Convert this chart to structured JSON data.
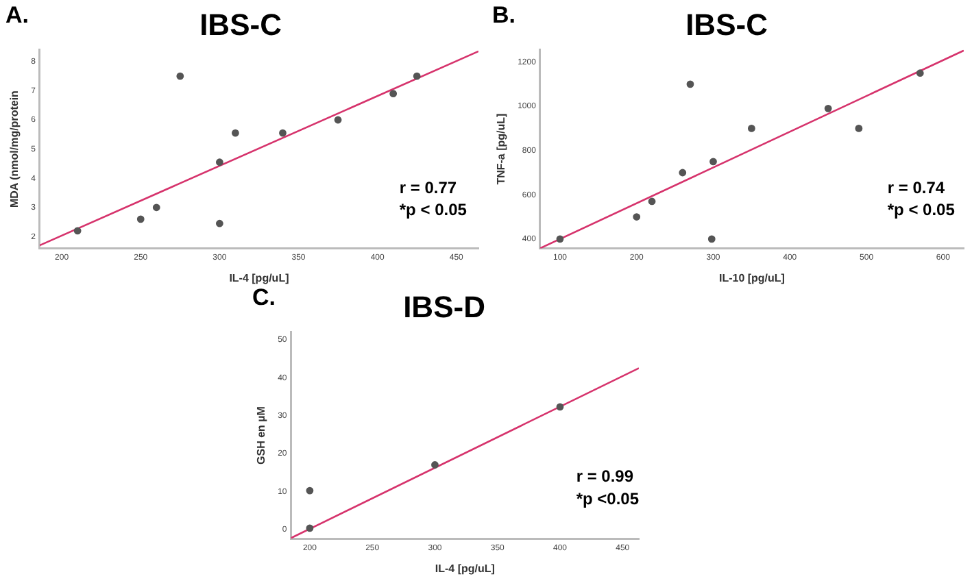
{
  "chart_data": [
    {
      "type": "scatter",
      "title": "IBS-C",
      "xlabel": "IL-4 [pg/uL]",
      "ylabel": "MDA (nmol/mg/protein",
      "annotations": [
        "A.",
        "r = 0.77",
        "*p < 0.05"
      ],
      "xlim": [
        186,
        464
      ],
      "xticks": [
        200,
        250,
        300,
        350,
        400,
        450
      ],
      "ylim": [
        1.6,
        8.4
      ],
      "yticks": [
        2,
        3,
        4,
        5,
        6,
        7,
        8
      ],
      "grid": false,
      "legend": false,
      "series": [
        {
          "type": "scatter",
          "marker": "circle",
          "color": "#555555",
          "x": [
            210,
            250,
            260,
            275,
            300,
            300,
            310,
            340,
            375,
            410,
            425
          ],
          "values": [
            2.2,
            2.6,
            3.0,
            7.5,
            2.45,
            4.55,
            5.55,
            5.55,
            6.0,
            6.9,
            7.5
          ]
        },
        {
          "type": "line",
          "color": "#d6336c",
          "x": [
            186,
            464
          ],
          "values": [
            1.7,
            8.35
          ]
        }
      ]
    },
    {
      "type": "scatter",
      "title": "IBS-C",
      "xlabel": "IL-10 [pg/uL]",
      "ylabel": "TNF-a [pg/uL]",
      "annotations": [
        "B.",
        "r = 0.74",
        "*p < 0.05"
      ],
      "xlim": [
        74,
        627
      ],
      "xticks": [
        100,
        200,
        300,
        400,
        500,
        600
      ],
      "ylim": [
        358,
        1255
      ],
      "yticks": [
        400,
        600,
        800,
        1000,
        1200
      ],
      "grid": false,
      "legend": false,
      "series": [
        {
          "type": "scatter",
          "marker": "circle",
          "color": "#555555",
          "x": [
            100,
            200,
            220,
            260,
            270,
            298,
            300,
            350,
            450,
            490,
            570
          ],
          "values": [
            400,
            500,
            570,
            700,
            1100,
            400,
            750,
            900,
            990,
            900,
            1150
          ]
        },
        {
          "type": "line",
          "color": "#d6336c",
          "x": [
            74,
            627
          ],
          "values": [
            358,
            1252
          ]
        }
      ]
    },
    {
      "type": "scatter",
      "title": "IBS-D",
      "xlabel": "IL-4 [pg/uL]",
      "ylabel": "GSH en µM",
      "annotations": [
        "C.",
        "r = 0.99",
        "*p <0.05"
      ],
      "xlim": [
        185,
        463
      ],
      "xticks": [
        200,
        250,
        300,
        350,
        400,
        450
      ],
      "ylim": [
        -2.5,
        52
      ],
      "yticks": [
        0,
        10,
        20,
        30,
        40,
        50
      ],
      "grid": false,
      "legend": false,
      "series": [
        {
          "type": "scatter",
          "marker": "circle",
          "color": "#555555",
          "x": [
            200,
            200,
            300,
            400
          ],
          "values": [
            0.3,
            10.2,
            17,
            32.3
          ]
        },
        {
          "type": "line",
          "color": "#d6336c",
          "x": [
            185,
            463
          ],
          "values": [
            -2.3,
            42.5
          ]
        }
      ]
    }
  ]
}
